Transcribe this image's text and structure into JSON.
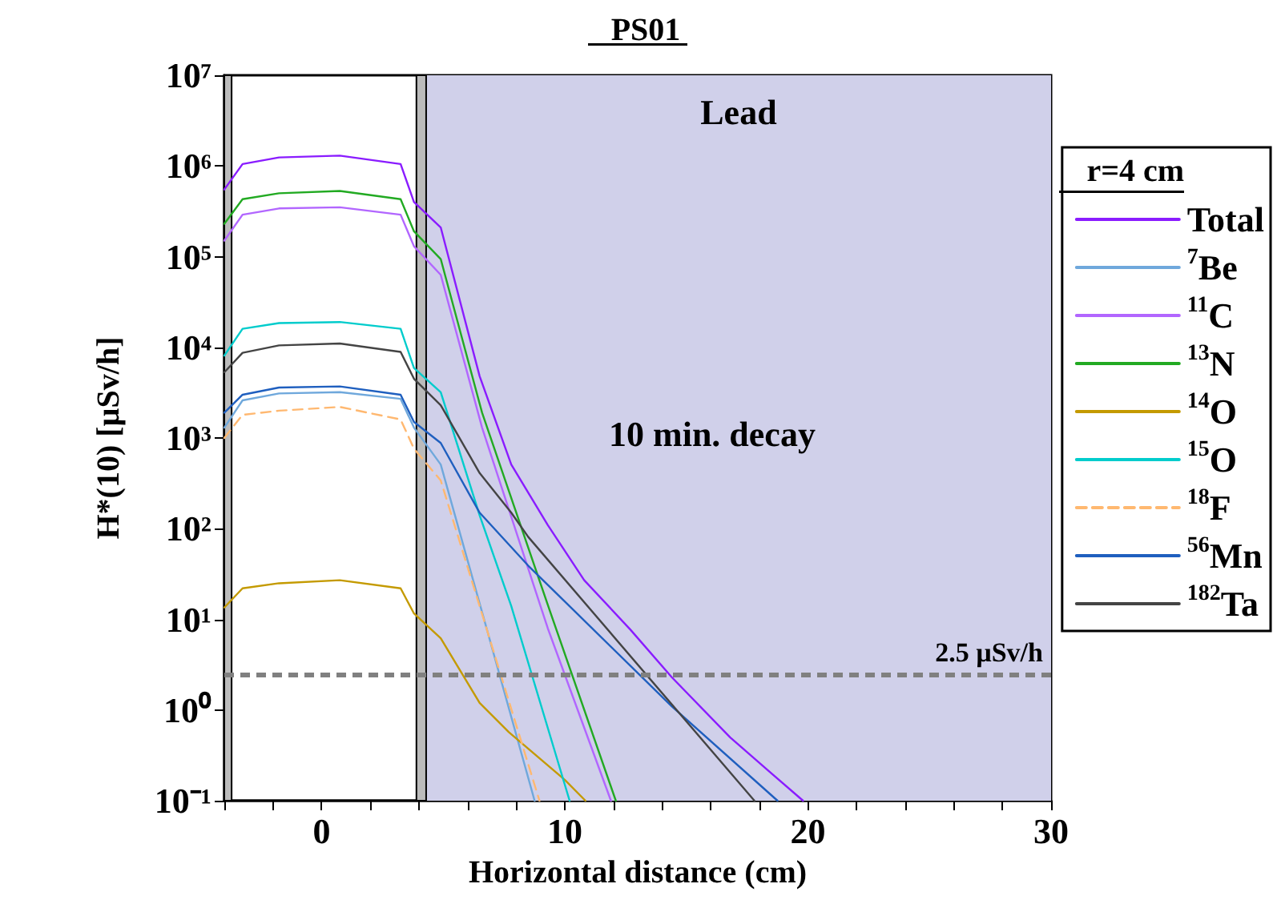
{
  "chart_data": {
    "type": "line",
    "title": "PS01",
    "xlabel": "Horizontal distance (cm)",
    "ylabel": "H*(10) [µSv/h]",
    "legend_title": "r=4 cm",
    "legend": "right",
    "log": "y",
    "grid": false,
    "marker": "none",
    "line_style": "solid",
    "xlim": [
      -4,
      30
    ],
    "xticks": [
      {
        "value": -4,
        "label": null
      },
      {
        "value": -2,
        "label": null
      },
      0,
      {
        "value": 2,
        "label": null
      },
      {
        "value": 4,
        "label": null
      },
      {
        "value": 6,
        "label": null
      },
      {
        "value": 8,
        "label": null
      },
      10,
      {
        "value": 12,
        "label": null
      },
      {
        "value": 14,
        "label": null
      },
      {
        "value": 16,
        "label": null
      },
      {
        "value": 18,
        "label": null
      },
      20,
      {
        "value": 22,
        "label": null
      },
      {
        "value": 24,
        "label": null
      },
      {
        "value": 26,
        "label": null
      },
      {
        "value": 28,
        "label": null
      },
      30
    ],
    "ylim": [
      0.1,
      10000000
    ],
    "yticks": [
      {
        "value": 0.1,
        "label": "10⁻¹"
      },
      {
        "value": 1,
        "label": "10⁰"
      },
      {
        "value": 10,
        "label": "10¹"
      },
      {
        "value": 100,
        "label": "10²"
      },
      {
        "value": 1000,
        "label": "10³"
      },
      {
        "value": 10000,
        "label": "10⁴"
      },
      {
        "value": 100000,
        "label": "10⁵"
      },
      {
        "value": 1000000,
        "label": "10⁶"
      },
      {
        "value": 10000000,
        "label": "10⁷"
      }
    ],
    "series": [
      {
        "name": "Total",
        "color": "#8a1cff",
        "x": [
          -4,
          -3.25,
          -1.75,
          0.75,
          3.25,
          3.8,
          4.9,
          6.5,
          7.8,
          9.3,
          10.8,
          12.7,
          14.4,
          16.8,
          18.5,
          19.8
        ],
        "values": [
          550000,
          1050000,
          1240000,
          1300000,
          1050000,
          400000,
          210000,
          4800,
          510,
          110,
          27,
          7.7,
          2.3,
          0.5,
          0.2,
          0.1
        ]
      },
      {
        "name": "$^{7}$Be",
        "color": "#6fa8dc",
        "x": [
          -4,
          -3.25,
          -1.75,
          0.75,
          3.25,
          3.8,
          4.9,
          6.5,
          8.76
        ],
        "values": [
          1300,
          2600,
          3100,
          3200,
          2700,
          1300,
          510,
          15,
          0.1
        ]
      },
      {
        "name": "$^{11}$C",
        "color": "#b266ff",
        "x": [
          -4,
          -3.25,
          -1.75,
          0.75,
          3.25,
          3.8,
          4.9,
          6.6,
          9.3,
          11.9
        ],
        "values": [
          150000,
          290000,
          340000,
          350000,
          290000,
          130000,
          63000,
          1300,
          8,
          0.1
        ]
      },
      {
        "name": "$^{13}$N",
        "color": "#22aa22",
        "x": [
          -4,
          -3.25,
          -1.75,
          0.75,
          3.25,
          3.8,
          4.9,
          6.6,
          9.3,
          12.1
        ],
        "values": [
          230000,
          430000,
          500000,
          530000,
          430000,
          190000,
          94000,
          1900,
          14.5,
          0.1
        ]
      },
      {
        "name": "$^{14}$O",
        "color": "#c49a00",
        "x": [
          -4,
          -3.25,
          -1.75,
          0.75,
          3.25,
          3.8,
          4.9,
          6.5,
          7.7,
          10,
          10.85
        ],
        "values": [
          13.5,
          22,
          25,
          27,
          22,
          11.6,
          6.2,
          1.2,
          0.57,
          0.17,
          0.1
        ]
      },
      {
        "name": "$^{15}$O",
        "color": "#00cccc",
        "x": [
          -4,
          -3.25,
          -1.75,
          0.75,
          3.25,
          3.8,
          4.9,
          6.5,
          7.8,
          10.2
        ],
        "values": [
          8100,
          16000,
          18500,
          19000,
          16000,
          5900,
          3200,
          140,
          14,
          0.1
        ]
      },
      {
        "name": "$^{18}$F",
        "color": "#ffb870",
        "line_style": "dashed",
        "x": [
          -4,
          -3.25,
          -1.75,
          0.75,
          3.25,
          3.8,
          4.9,
          6.5,
          8.96
        ],
        "values": [
          1000,
          1800,
          2000,
          2200,
          1600,
          760,
          340,
          14,
          0.1
        ]
      },
      {
        "name": "$^{56}$Mn",
        "color": "#1f5fbf",
        "x": [
          -4,
          -3.25,
          -1.75,
          0.75,
          3.25,
          3.8,
          4.9,
          6.5,
          8.5,
          14.4,
          18.75
        ],
        "values": [
          1900,
          3000,
          3600,
          3700,
          3000,
          1500,
          880,
          150,
          39,
          1.1,
          0.1
        ]
      },
      {
        "name": "$^{182}$Ta",
        "color": "#444444",
        "x": [
          -4,
          -3.25,
          -1.75,
          0.75,
          3.25,
          3.8,
          4.9,
          6.5,
          7.8,
          8.5,
          17.8
        ],
        "values": [
          5300,
          8700,
          10500,
          11000,
          8900,
          4500,
          2300,
          410,
          150,
          81,
          0.1
        ]
      }
    ],
    "ref_lines": [
      {
        "axis": "y",
        "value": 2.5,
        "label": "2.5 µSv/h",
        "color": "#808080",
        "line_style": "dashed"
      }
    ],
    "bands": [
      {
        "axis": "x",
        "from": 4.3,
        "to": 30,
        "label": "Lead",
        "color": "#d0d0ea"
      },
      {
        "axis": "x",
        "from": -4,
        "to": -3.7,
        "color": "#bbbbbb"
      },
      {
        "axis": "x",
        "from": 3.9,
        "to": 4.3,
        "color": "#bbbbbb"
      }
    ],
    "annotations": [
      "10 min. decay"
    ]
  }
}
